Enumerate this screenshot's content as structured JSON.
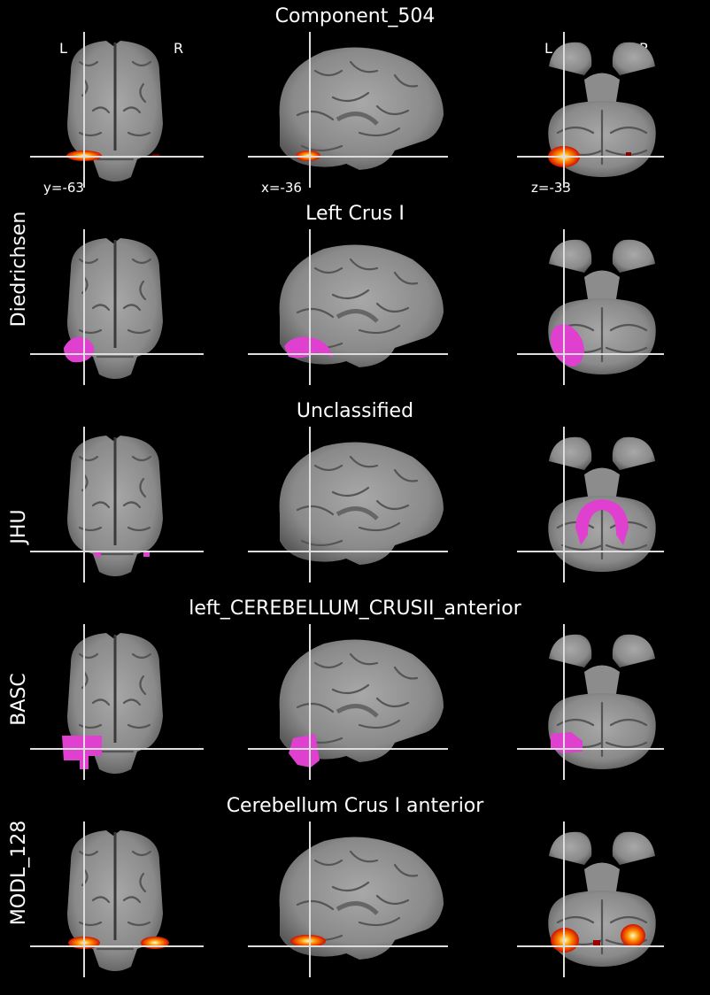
{
  "figure": {
    "orientation_left": "L",
    "orientation_right": "R",
    "coords": {
      "coronal": "y=-63",
      "sagittal": "x=-36",
      "axial": "z=-33"
    },
    "rows": [
      {
        "atlas": "",
        "title": "Component_504",
        "overlay": "heat"
      },
      {
        "atlas": "Diedrichsen",
        "title": "Left Crus I",
        "overlay": "magenta"
      },
      {
        "atlas": "JHU",
        "title": "Unclassified",
        "overlay": "magenta"
      },
      {
        "atlas": "BASC",
        "title": "left_CEREBELLUM_CRUSII_anterior",
        "overlay": "magenta"
      },
      {
        "atlas": "MODL_128",
        "title": "Cerebellum Crus I anterior",
        "overlay": "heat"
      }
    ]
  },
  "colors": {
    "background": "#000000",
    "crosshair": "#dddddd",
    "atlas_overlay": "#e040d0",
    "heat_low": "#d01000",
    "heat_mid": "#ff9000",
    "heat_high": "#ffffc0"
  }
}
